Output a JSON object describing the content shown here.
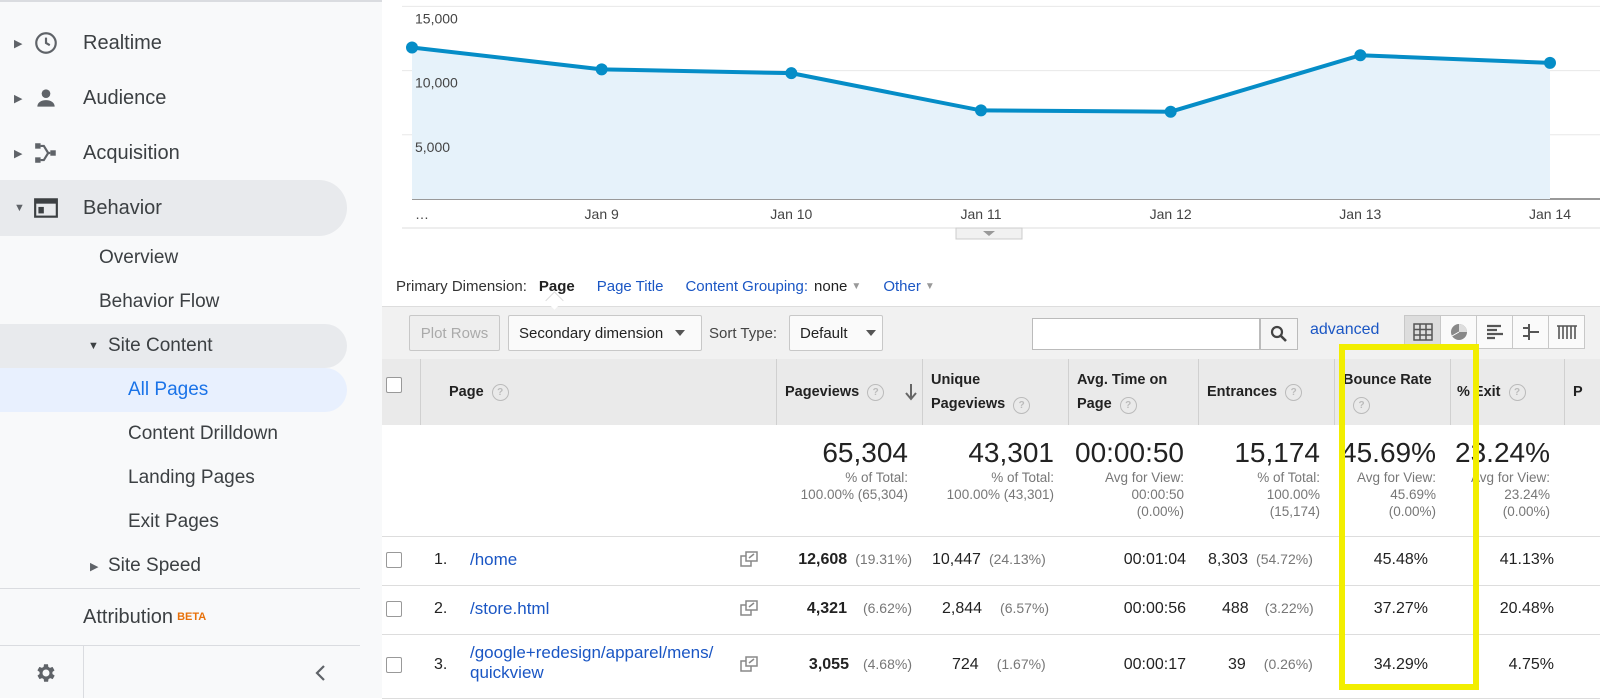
{
  "sidebar": {
    "main_items": [
      {
        "label": "Realtime",
        "icon": "clock-icon"
      },
      {
        "label": "Audience",
        "icon": "person-icon"
      },
      {
        "label": "Acquisition",
        "icon": "acquisition-icon"
      },
      {
        "label": "Behavior",
        "icon": "behavior-icon"
      }
    ],
    "behavior_sub": [
      "Overview",
      "Behavior Flow"
    ],
    "site_content_label": "Site Content",
    "site_content_sub": [
      "All Pages",
      "Content Drilldown",
      "Landing Pages",
      "Exit Pages"
    ],
    "site_speed_label": "Site Speed",
    "attribution_label": "Attribution",
    "attribution_badge": "BETA"
  },
  "chart_data": {
    "type": "line",
    "x": [
      "…",
      "Jan 9",
      "Jan 10",
      "Jan 11",
      "Jan 12",
      "Jan 13",
      "Jan 14"
    ],
    "tick_labels": [
      "…",
      "Jan 9",
      "Jan 10",
      "Jan 11",
      "Jan 12",
      "Jan 13",
      "Jan 14"
    ],
    "values": [
      11800,
      10100,
      9800,
      6900,
      6800,
      11200,
      10600
    ],
    "yticks": [
      "15,000",
      "10,000",
      "5,000"
    ],
    "ytick_values": [
      15000,
      10000,
      5000
    ],
    "ylim": [
      0,
      15500
    ],
    "grid": true,
    "color": "#058dc7",
    "fill": "#e6f2fa"
  },
  "dimension_bar": {
    "label": "Primary Dimension:",
    "current": "Page",
    "page_title": "Page Title",
    "content_grouping": "Content Grouping:",
    "content_grouping_value": "none",
    "other": "Other"
  },
  "toolbar": {
    "plot_rows": "Plot Rows",
    "secondary_dimension": "Secondary dimension",
    "sort_type_label": "Sort Type:",
    "sort_type_value": "Default",
    "search_placeholder": "",
    "advanced": "advanced"
  },
  "table": {
    "headers": {
      "page": "Page",
      "pageviews": "Pageviews",
      "unique_line1": "Unique",
      "unique_line2": "Pageviews",
      "avg_line1": "Avg. Time on",
      "avg_line2": "Page",
      "entrances": "Entrances",
      "bounce": "Bounce Rate",
      "exit": "% Exit",
      "next": "P"
    },
    "totals": {
      "pageviews": {
        "value": "65,304",
        "l1": "% of Total:",
        "l2": "100.00% (65,304)"
      },
      "unique": {
        "value": "43,301",
        "l1": "% of Total:",
        "l2": "100.00% (43,301)"
      },
      "avg_time": {
        "value": "00:00:50",
        "l1": "Avg for View:",
        "l2": "00:00:50",
        "l3": "(0.00%)"
      },
      "entrances": {
        "value": "15,174",
        "l1": "% of Total:",
        "l2": "100.00%",
        "l3": "(15,174)"
      },
      "bounce": {
        "value": "45.69%",
        "l1": "Avg for View:",
        "l2": "45.69%",
        "l3": "(0.00%)"
      },
      "exit": {
        "value": "23.24%",
        "l1": "Avg for View:",
        "l2": "23.24%",
        "l3": "(0.00%)"
      }
    },
    "rows": [
      {
        "num": "1.",
        "page": "/home",
        "page2": "",
        "pageviews": "12,608",
        "pv_pct": "(19.31%)",
        "unique": "10,447",
        "u_pct": "(24.13%)",
        "avg": "00:01:04",
        "entrances": "8,303",
        "e_pct": "(54.72%)",
        "bounce": "45.48%",
        "exit": "41.13%"
      },
      {
        "num": "2.",
        "page": "/store.html",
        "page2": "",
        "pageviews": "4,321",
        "pv_pct": "(6.62%)",
        "unique": "2,844",
        "u_pct": "(6.57%)",
        "avg": "00:00:56",
        "entrances": "488",
        "e_pct": "(3.22%)",
        "bounce": "37.27%",
        "exit": "20.48%"
      },
      {
        "num": "3.",
        "page": "/google+redesign/apparel/mens/",
        "page2": "quickview",
        "pageviews": "3,055",
        "pv_pct": "(4.68%)",
        "unique": "724",
        "u_pct": "(1.67%)",
        "avg": "00:00:17",
        "entrances": "39",
        "e_pct": "(0.26%)",
        "bounce": "34.29%",
        "exit": "4.75%"
      }
    ]
  }
}
